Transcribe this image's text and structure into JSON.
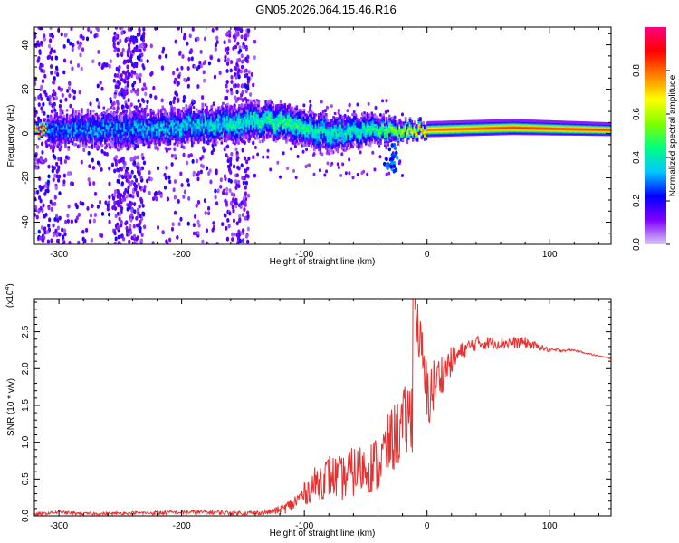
{
  "title": "GN05.2026.064.15.46.R16",
  "chart_data": [
    {
      "type": "heatmap",
      "title": "GN05.2026.064.15.46.R16",
      "xlabel": "Height of straight line (km)",
      "ylabel": "Frequency (Hz)",
      "xlim": [
        -320,
        150
      ],
      "ylim": [
        -50,
        48
      ],
      "xticks": [
        -300,
        -200,
        -100,
        0,
        100
      ],
      "yticks": [
        -40,
        -20,
        0,
        20,
        40
      ],
      "colorbar": {
        "label": "Normalized spectral amplitude",
        "range": [
          0.0,
          1.0
        ],
        "ticks": [
          "0.0",
          "0.2",
          "0.4",
          "0.6",
          "0.8"
        ],
        "colormap": [
          "#d8c8f8",
          "#8000ff",
          "#0000ff",
          "#00c8ff",
          "#00ff80",
          "#80ff00",
          "#ffff00",
          "#ff8000",
          "#ff0000",
          "#ff0080"
        ]
      },
      "band": {
        "description_points": [
          {
            "x": -310,
            "center": 2,
            "halfwidth": 7,
            "amp": 0.3
          },
          {
            "x": -250,
            "center": 2,
            "halfwidth": 8,
            "amp": 0.3
          },
          {
            "x": -200,
            "center": 3,
            "halfwidth": 8,
            "amp": 0.35
          },
          {
            "x": -150,
            "center": 5,
            "halfwidth": 8,
            "amp": 0.4
          },
          {
            "x": -120,
            "center": 6,
            "halfwidth": 8,
            "amp": 0.45
          },
          {
            "x": -80,
            "center": 0,
            "halfwidth": 8,
            "amp": 0.4
          },
          {
            "x": -50,
            "center": 2,
            "halfwidth": 7,
            "amp": 0.4
          },
          {
            "x": -20,
            "center": 1,
            "halfwidth": 4,
            "amp": 0.6
          },
          {
            "x": 0,
            "center": 2,
            "halfwidth": 3,
            "amp": 0.8
          },
          {
            "x": 70,
            "center": 3,
            "halfwidth": 3,
            "amp": 0.85
          },
          {
            "x": 150,
            "center": 2,
            "halfwidth": 2.5,
            "amp": 0.85
          }
        ]
      }
    },
    {
      "type": "line",
      "xlabel": "Height of straight line (km)",
      "ylabel": "SNR (10 * v/v)",
      "yscale_label": "(x10",
      "yscale_exp": "4",
      "yscale_close": ")",
      "xlim": [
        -320,
        150
      ],
      "ylim": [
        0,
        2.95
      ],
      "xticks": [
        -300,
        -200,
        -100,
        0,
        100
      ],
      "yticks": [
        0.0,
        0.5,
        1.0,
        1.5,
        2.0,
        2.5
      ],
      "color": "#e83030",
      "series": [
        {
          "name": "SNR",
          "x": [
            -320,
            -300,
            -280,
            -260,
            -240,
            -220,
            -200,
            -180,
            -160,
            -140,
            -130,
            -120,
            -110,
            -100,
            -90,
            -80,
            -70,
            -60,
            -50,
            -40,
            -30,
            -20,
            -12,
            -10,
            0,
            10,
            20,
            30,
            40,
            60,
            80,
            90,
            100,
            120,
            140,
            150
          ],
          "y": [
            0.02,
            0.05,
            0.03,
            0.03,
            0.04,
            0.04,
            0.05,
            0.05,
            0.04,
            0.04,
            0.05,
            0.08,
            0.15,
            0.3,
            0.45,
            0.55,
            0.5,
            0.6,
            0.65,
            0.7,
            1.0,
            1.2,
            1.4,
            2.9,
            1.6,
            1.9,
            2.1,
            2.25,
            2.35,
            2.35,
            2.35,
            2.3,
            2.25,
            2.25,
            2.17,
            2.14
          ],
          "noise_amplitude": [
            0.02,
            0.02,
            0.02,
            0.02,
            0.02,
            0.03,
            0.03,
            0.03,
            0.03,
            0.03,
            0.03,
            0.06,
            0.1,
            0.15,
            0.25,
            0.3,
            0.3,
            0.35,
            0.35,
            0.4,
            0.45,
            0.5,
            0.55,
            0.3,
            0.5,
            0.3,
            0.2,
            0.12,
            0.1,
            0.08,
            0.08,
            0.05,
            0.03,
            0.01,
            0.01,
            0.01
          ]
        }
      ]
    }
  ]
}
